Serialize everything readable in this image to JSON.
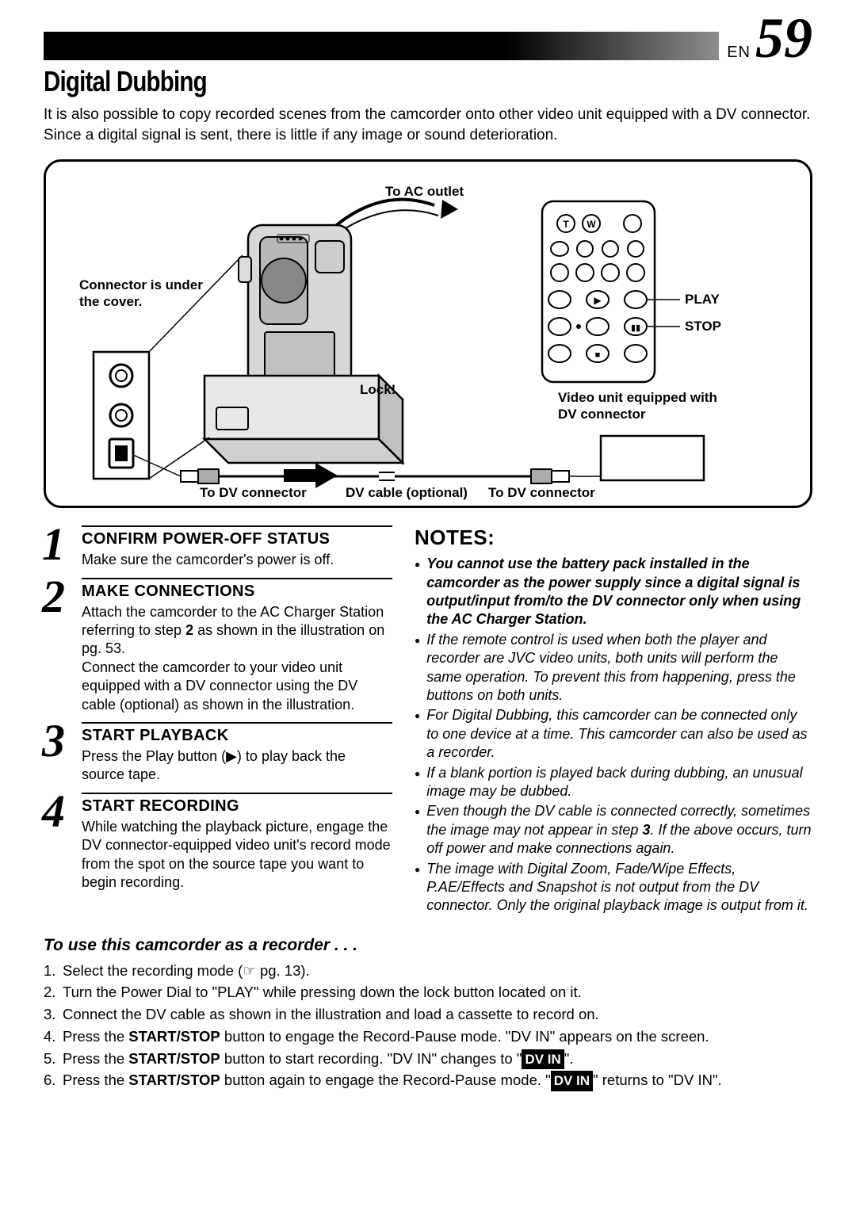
{
  "page": {
    "lang": "EN",
    "number": "59"
  },
  "title": "Digital Dubbing",
  "intro": "It is also possible to copy recorded scenes from the camcorder onto other video unit equipped with a DV connector. Since a digital signal is sent, there is little if any image or sound deterioration.",
  "diagram": {
    "to_ac_outlet": "To AC outlet",
    "connector_under_cover": "Connector is under the cover.",
    "lock": "Lock!",
    "to_dv_connector_left": "To DV connector",
    "dv_cable": "DV cable (optional)",
    "to_dv_connector_right": "To DV connector",
    "play": "PLAY",
    "stop": "STOP",
    "video_unit": "Video unit equipped with DV connector",
    "remote_t": "T",
    "remote_w": "W"
  },
  "steps": [
    {
      "num": "1",
      "title": "CONFIRM POWER-OFF STATUS",
      "body": "Make sure the camcorder's power is off."
    },
    {
      "num": "2",
      "title": "MAKE CONNECTIONS",
      "body": "Attach the camcorder to the AC Charger Station referring to step 2 as shown in the illustration on pg. 53.\nConnect the camcorder to your video unit equipped with a DV connector using the DV cable (optional) as shown in the illustration."
    },
    {
      "num": "3",
      "title": "START PLAYBACK",
      "body": "Press the Play button (▶) to play back the source tape."
    },
    {
      "num": "4",
      "title": "START RECORDING",
      "body": "While watching the playback picture, engage the DV connector-equipped video unit's record mode from the spot on the source tape you want to begin recording."
    }
  ],
  "notes_title": "NOTES:",
  "notes": [
    {
      "style": "bold-italic",
      "text": "You cannot use the battery pack installed in the camcorder as the power supply since a digital signal is output/input from/to the DV connector only when using the AC Charger Station."
    },
    {
      "style": "italic",
      "text": "If the remote control is used when both the player and recorder are JVC video units, both units will perform the same operation. To prevent this from happening, press the buttons on both units."
    },
    {
      "style": "italic",
      "text": "For Digital Dubbing, this camcorder can be connected only to one device at a time. This camcorder can also be used as a recorder."
    },
    {
      "style": "italic",
      "text": "If a blank portion is played back during dubbing, an unusual image may be dubbed."
    },
    {
      "style": "italic",
      "text": "Even though the DV cable is connected correctly, sometimes the image may not appear in step 3. If the above occurs, turn off power and make connections again."
    },
    {
      "style": "italic",
      "text": "The image with Digital Zoom, Fade/Wipe Effects, P.AE/Effects and Snapshot is not output from the DV connector. Only the original playback image is output from it."
    }
  ],
  "recorder": {
    "title": "To use this camcorder as a recorder . . .",
    "items": [
      {
        "n": "1.",
        "html": "Select the recording mode (☞ pg. 13)."
      },
      {
        "n": "2.",
        "html": "Turn the Power Dial to \"PLAY\" while pressing down the lock button located on it."
      },
      {
        "n": "3.",
        "html": "Connect the DV cable as shown in the illustration and load a cassette to record on."
      },
      {
        "n": "4.",
        "html": "Press the <b>START/STOP</b> button to engage the Record-Pause mode. \"DV IN\" appears on the screen."
      },
      {
        "n": "5.",
        "html": "Press the <b>START/STOP</b> button to start recording. \"DV IN\" changes to \"<span class='dvin-box'>DV IN</span>\"."
      },
      {
        "n": "6.",
        "html": "Press the <b>START/STOP</b> button again to engage the Record-Pause mode. \"<span class='dvin-box'>DV IN</span>\" returns to \"DV IN\"."
      }
    ]
  }
}
